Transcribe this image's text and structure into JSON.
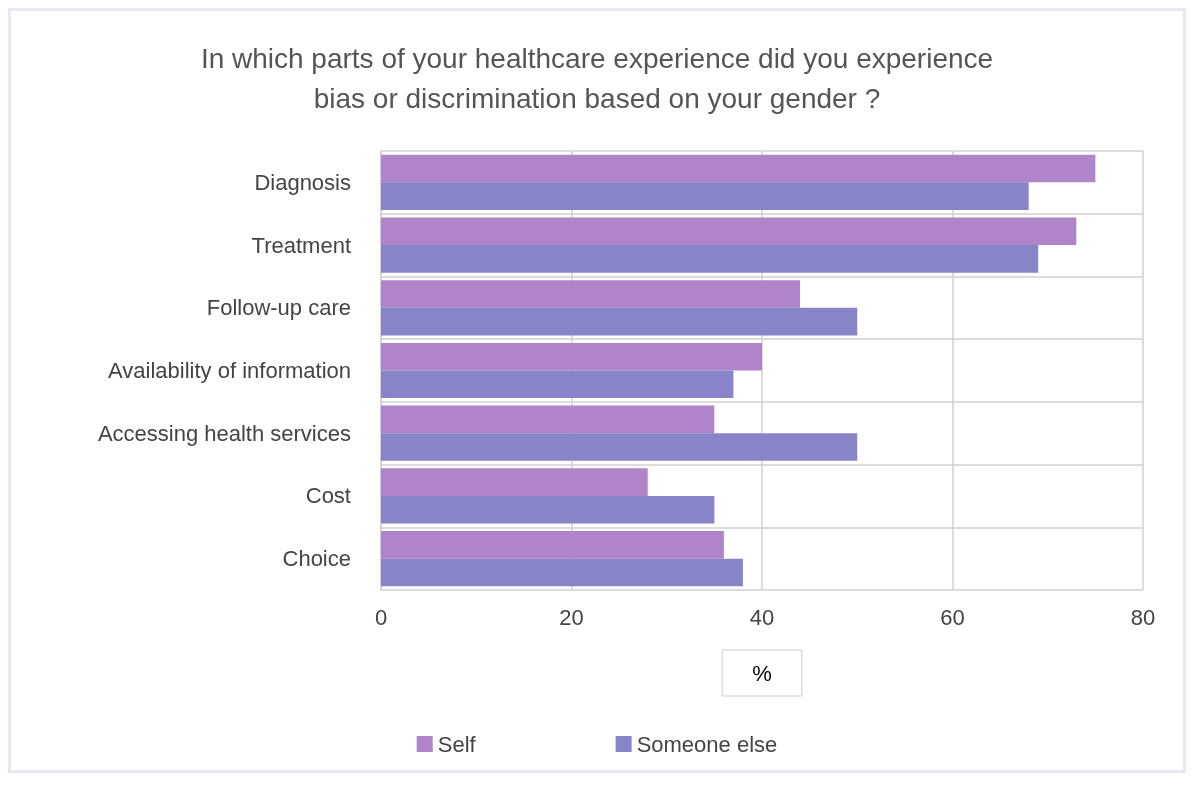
{
  "chart_data": {
    "type": "bar",
    "orientation": "horizontal",
    "title": "In which parts of your healthcare experience did you experience\nbias or discrimination based on your gender ?",
    "xlabel": "%",
    "categories": [
      "Diagnosis",
      "Treatment",
      "Follow-up care",
      "Availability of information",
      "Accessing health services",
      "Cost",
      "Choice"
    ],
    "series": [
      {
        "name": "Self",
        "color": "#b084c8",
        "values": [
          75,
          73,
          44,
          40,
          35,
          28,
          36
        ]
      },
      {
        "name": "Someone else",
        "color": "#8884c8",
        "values": [
          68,
          69,
          50,
          37,
          50,
          35,
          38
        ]
      }
    ],
    "xlim": [
      0,
      80
    ],
    "xticks": [
      0,
      20,
      40,
      60,
      80
    ],
    "grid": true,
    "legend": "bottom"
  }
}
